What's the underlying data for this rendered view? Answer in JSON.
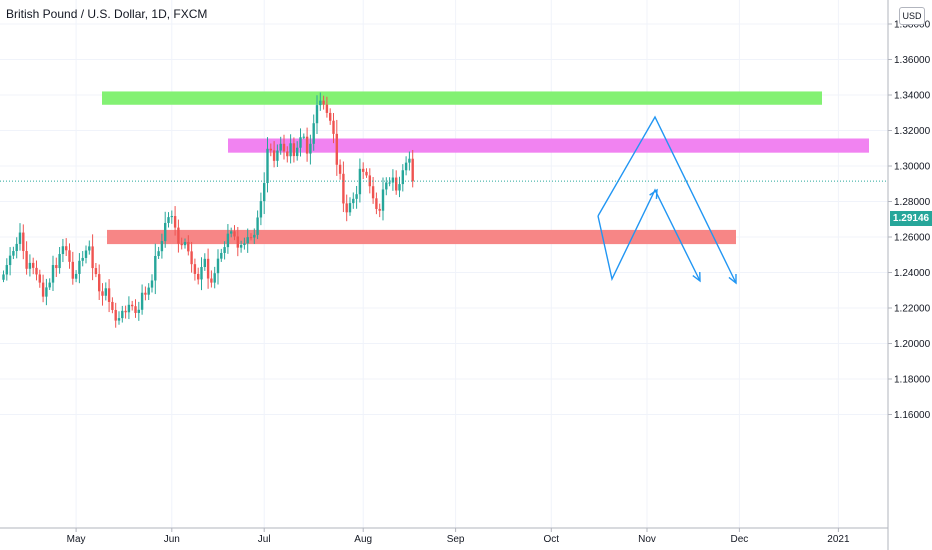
{
  "chart_data": {
    "type": "candlestick",
    "title": "British Pound / U.S. Dollar, 1D, FXCM",
    "currency": "USD",
    "last_price": "1.29146",
    "ylim": [
      1.155,
      1.39
    ],
    "y_ticks": [
      {
        "value": 1.16,
        "label": "1.16000"
      },
      {
        "value": 1.18,
        "label": "1.18000"
      },
      {
        "value": 1.2,
        "label": "1.20000"
      },
      {
        "value": 1.22,
        "label": "1.22000"
      },
      {
        "value": 1.24,
        "label": "1.24000"
      },
      {
        "value": 1.26,
        "label": "1.26000"
      },
      {
        "value": 1.28,
        "label": "1.28000"
      },
      {
        "value": 1.3,
        "label": "1.30000"
      },
      {
        "value": 1.32,
        "label": "1.32000"
      },
      {
        "value": 1.34,
        "label": "1.34000"
      },
      {
        "value": 1.36,
        "label": "1.36000"
      },
      {
        "value": 1.38,
        "label": "1.38000"
      }
    ],
    "x_ticks": [
      {
        "bar": 22,
        "label": "May"
      },
      {
        "bar": 51,
        "label": "Jun"
      },
      {
        "bar": 79,
        "label": "Jul"
      },
      {
        "bar": 109,
        "label": "Aug"
      },
      {
        "bar": 137,
        "label": "Sep"
      },
      {
        "bar": 166,
        "label": "Oct"
      },
      {
        "bar": 195,
        "label": "Nov"
      },
      {
        "bar": 223,
        "label": "Dec"
      },
      {
        "bar": 253,
        "label": "2021"
      }
    ],
    "closes": [
      1.2389,
      1.2442,
      1.2495,
      1.2521,
      1.2561,
      1.2625,
      1.2521,
      1.2421,
      1.2454,
      1.2426,
      1.2389,
      1.2343,
      1.2264,
      1.2316,
      1.2343,
      1.2442,
      1.2425,
      1.2504,
      1.2548,
      1.2525,
      1.246,
      1.2365,
      1.2392,
      1.2466,
      1.2482,
      1.2524,
      1.2547,
      1.2425,
      1.2391,
      1.2294,
      1.2269,
      1.2311,
      1.2234,
      1.2189,
      1.2129,
      1.2143,
      1.2184,
      1.2176,
      1.2218,
      1.221,
      1.2172,
      1.219,
      1.2286,
      1.2275,
      1.2315,
      1.2355,
      1.2493,
      1.252,
      1.2577,
      1.2679,
      1.2712,
      1.2718,
      1.2653,
      1.2562,
      1.2554,
      1.2572,
      1.2519,
      1.2447,
      1.2392,
      1.2361,
      1.2431,
      1.2477,
      1.2366,
      1.2343,
      1.2396,
      1.2478,
      1.251,
      1.2543,
      1.2619,
      1.2632,
      1.2603,
      1.254,
      1.2555,
      1.2564,
      1.2599,
      1.2597,
      1.2612,
      1.271,
      1.2802,
      1.2904,
      1.3097,
      1.3088,
      1.3029,
      1.3087,
      1.3125,
      1.3082,
      1.3055,
      1.3128,
      1.3056,
      1.3103,
      1.3162,
      1.3165,
      1.307,
      1.3125,
      1.3241,
      1.3343,
      1.3368,
      1.3346,
      1.3299,
      1.3255,
      1.3181,
      1.3007,
      1.2956,
      1.2789,
      1.2739,
      1.2791,
      1.2815,
      1.2841,
      1.2984,
      1.2967,
      1.2947,
      1.2886,
      1.2818,
      1.2758,
      1.2748,
      1.2868,
      1.2907,
      1.2907,
      1.2935,
      1.2862,
      1.2898,
      1.2976,
      1.3019,
      1.3041,
      1.2914
    ],
    "supply_zone": {
      "from": 1.3345,
      "to": 1.342,
      "color": "#7cf06c"
    },
    "resistance_zone": {
      "from": 1.3075,
      "to": 1.3155,
      "color": "#f07cf0"
    },
    "support_zone": {
      "from": 1.256,
      "to": 1.264,
      "color": "#f77f7f"
    },
    "arrow_color": "#2196f3"
  },
  "ui": {
    "up_color": "#26a69a",
    "down_color": "#ef5350"
  }
}
